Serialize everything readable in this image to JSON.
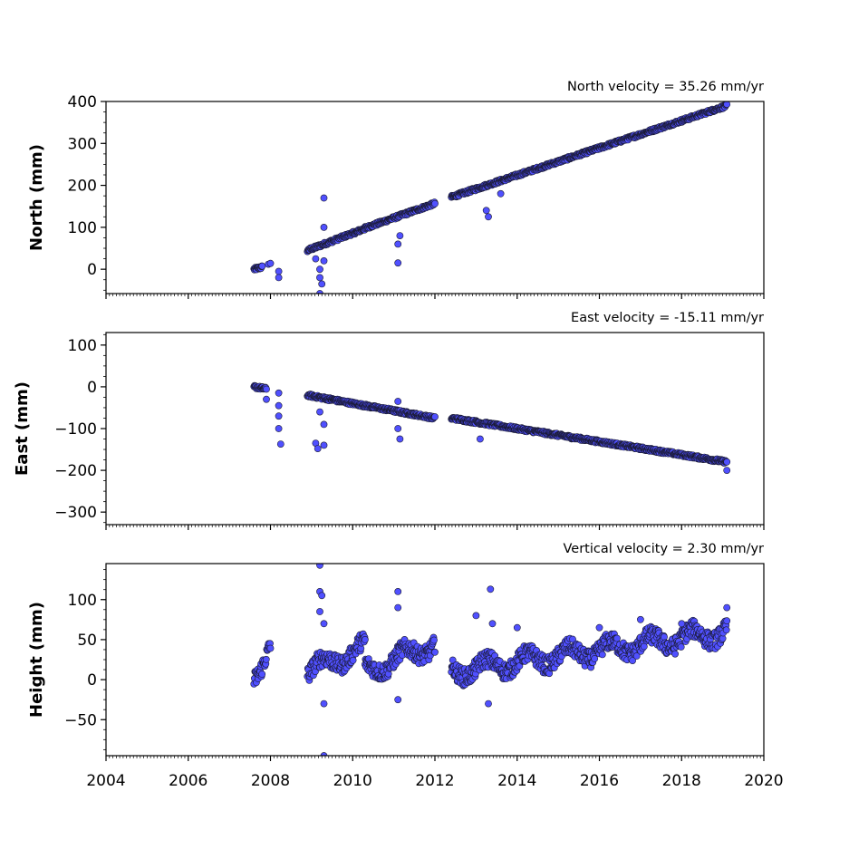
{
  "chart_data": [
    {
      "type": "scatter",
      "title": "North velocity = 35.26 mm/yr",
      "xlabel": "",
      "ylabel": "North (mm)",
      "xlim": [
        2004,
        2020
      ],
      "ylim": [
        -58,
        400
      ],
      "yticks": [
        0,
        100,
        200,
        300,
        400
      ],
      "ytick_labels": [
        "0",
        "100",
        "200",
        "300",
        "400"
      ],
      "marker_color": "#5050ff",
      "marker_edge": "#1a1a33",
      "segments": [
        {
          "x": [
            2007.6,
            2007.8
          ],
          "y": [
            0,
            5
          ]
        },
        {
          "x": [
            2008.9,
            2010.3
          ],
          "y": [
            45,
            97
          ]
        },
        {
          "x": [
            2010.3,
            2012.0
          ],
          "y": [
            98,
            157
          ]
        },
        {
          "x": [
            2012.4,
            2019.1
          ],
          "y": [
            172,
            390
          ]
        }
      ],
      "outliers": [
        {
          "x": 2007.95,
          "y": 12
        },
        {
          "x": 2008.0,
          "y": 14
        },
        {
          "x": 2008.2,
          "y": -5
        },
        {
          "x": 2008.2,
          "y": -20
        },
        {
          "x": 2009.1,
          "y": 25
        },
        {
          "x": 2009.2,
          "y": 0
        },
        {
          "x": 2009.2,
          "y": -20
        },
        {
          "x": 2009.25,
          "y": -35
        },
        {
          "x": 2009.3,
          "y": 100
        },
        {
          "x": 2009.3,
          "y": 170
        },
        {
          "x": 2009.2,
          "y": -58
        },
        {
          "x": 2009.3,
          "y": 20
        },
        {
          "x": 2011.1,
          "y": 15
        },
        {
          "x": 2011.1,
          "y": 60
        },
        {
          "x": 2011.15,
          "y": 80
        },
        {
          "x": 2013.3,
          "y": 125
        },
        {
          "x": 2013.25,
          "y": 140
        },
        {
          "x": 2013.6,
          "y": 180
        }
      ]
    },
    {
      "type": "scatter",
      "title": "East velocity = -15.11 mm/yr",
      "xlabel": "",
      "ylabel": "East (mm)",
      "xlim": [
        2004,
        2020
      ],
      "ylim": [
        -330,
        130
      ],
      "yticks": [
        100,
        0,
        -100,
        -200,
        -300
      ],
      "ytick_labels": [
        "100",
        "0",
        "−100",
        "−200",
        "−300"
      ],
      "marker_color": "#5050ff",
      "marker_edge": "#1a1a33",
      "segments": [
        {
          "x": [
            2007.6,
            2007.9
          ],
          "y": [
            0,
            -5
          ]
        },
        {
          "x": [
            2008.9,
            2010.3
          ],
          "y": [
            -20,
            -45
          ]
        },
        {
          "x": [
            2010.3,
            2012.0
          ],
          "y": [
            -45,
            -75
          ]
        },
        {
          "x": [
            2012.4,
            2019.1
          ],
          "y": [
            -75,
            -180
          ]
        }
      ],
      "outliers": [
        {
          "x": 2007.9,
          "y": -30
        },
        {
          "x": 2008.2,
          "y": -15
        },
        {
          "x": 2008.2,
          "y": -45
        },
        {
          "x": 2008.2,
          "y": -70
        },
        {
          "x": 2008.2,
          "y": -100
        },
        {
          "x": 2008.25,
          "y": -137
        },
        {
          "x": 2009.1,
          "y": -135
        },
        {
          "x": 2009.15,
          "y": -148
        },
        {
          "x": 2009.3,
          "y": -140
        },
        {
          "x": 2009.3,
          "y": -90
        },
        {
          "x": 2009.2,
          "y": -60
        },
        {
          "x": 2011.15,
          "y": -125
        },
        {
          "x": 2011.1,
          "y": -100
        },
        {
          "x": 2011.1,
          "y": -35
        },
        {
          "x": 2013.1,
          "y": -125
        },
        {
          "x": 2019.1,
          "y": -200
        }
      ]
    },
    {
      "type": "scatter",
      "title": "Vertical velocity = 2.30 mm/yr",
      "xlabel": "",
      "ylabel": "Height (mm)",
      "xlim": [
        2004,
        2020
      ],
      "ylim": [
        -95,
        145
      ],
      "yticks": [
        100,
        50,
        0,
        -50
      ],
      "ytick_labels": [
        "100",
        "50",
        "0",
        "−50"
      ],
      "xticks": [
        2004,
        2006,
        2008,
        2010,
        2012,
        2014,
        2016,
        2018,
        2020
      ],
      "xtick_labels": [
        "2004",
        "2006",
        "2008",
        "2010",
        "2012",
        "2014",
        "2016",
        "2018",
        "2020"
      ],
      "marker_color": "#5050ff",
      "marker_edge": "#1a1a33",
      "segments": [
        {
          "x": [
            2007.6,
            2008.0
          ],
          "y": [
            5,
            45
          ]
        },
        {
          "x": [
            2008.9,
            2010.3
          ],
          "y": [
            10,
            40
          ]
        },
        {
          "x": [
            2010.3,
            2012.0
          ],
          "y": [
            10,
            45
          ]
        },
        {
          "x": [
            2012.4,
            2019.1
          ],
          "y": [
            10,
            60
          ]
        }
      ],
      "outliers": [
        {
          "x": 2009.2,
          "y": 143
        },
        {
          "x": 2009.2,
          "y": 110
        },
        {
          "x": 2009.25,
          "y": 105
        },
        {
          "x": 2009.2,
          "y": 85
        },
        {
          "x": 2009.3,
          "y": 70
        },
        {
          "x": 2009.3,
          "y": -30
        },
        {
          "x": 2009.3,
          "y": -95
        },
        {
          "x": 2011.1,
          "y": 110
        },
        {
          "x": 2011.1,
          "y": 90
        },
        {
          "x": 2011.1,
          "y": -25
        },
        {
          "x": 2013.35,
          "y": 113
        },
        {
          "x": 2013.3,
          "y": -30
        },
        {
          "x": 2013.4,
          "y": 70
        },
        {
          "x": 2013.0,
          "y": 80
        },
        {
          "x": 2014.0,
          "y": 65
        },
        {
          "x": 2016.0,
          "y": 65
        },
        {
          "x": 2017.0,
          "y": 75
        },
        {
          "x": 2018.0,
          "y": 70
        },
        {
          "x": 2019.1,
          "y": 90
        }
      ]
    }
  ]
}
